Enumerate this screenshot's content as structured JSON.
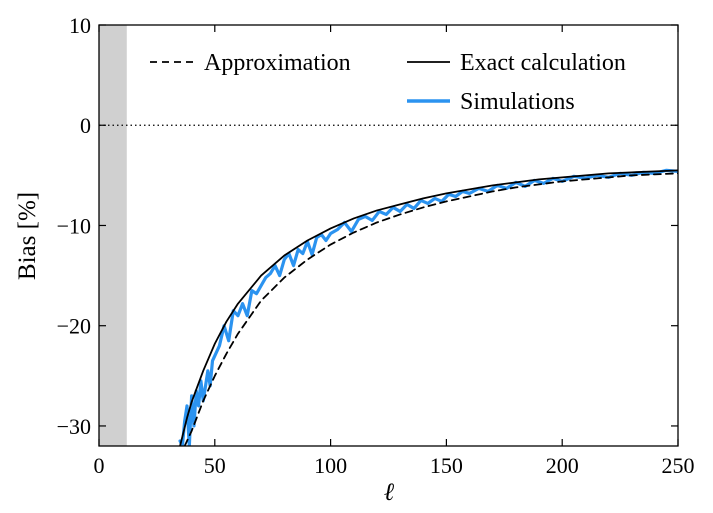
{
  "chart_data": {
    "type": "line",
    "title": "",
    "xlabel": "ℓ",
    "ylabel": "Bias [%]",
    "xlim": [
      0,
      250
    ],
    "ylim": [
      -32,
      10
    ],
    "xticks": [
      0,
      50,
      100,
      150,
      200,
      250
    ],
    "yticks": [
      -30,
      -20,
      -10,
      0,
      10
    ],
    "xtick_labels": [
      "0",
      "50",
      "100",
      "150",
      "200",
      "250"
    ],
    "ytick_labels": [
      "−30",
      "−20",
      "−10",
      "0",
      "10"
    ],
    "shaded_band": {
      "x_from": 0,
      "x_to": 12,
      "color": "#d0d0d0"
    },
    "reference_line": {
      "y": 0,
      "style": "dotted"
    },
    "legend_position": "top",
    "series": [
      {
        "name": "Approximation",
        "style": "dashed",
        "color": "#000000",
        "x": [
          37,
          40,
          45,
          50,
          55,
          60,
          70,
          80,
          90,
          100,
          110,
          120,
          130,
          140,
          150,
          160,
          170,
          180,
          190,
          200,
          210,
          220,
          230,
          240,
          250
        ],
        "y": [
          -32,
          -30.5,
          -27.5,
          -25,
          -22.8,
          -20.8,
          -17.5,
          -15.2,
          -13.4,
          -11.9,
          -10.7,
          -9.7,
          -8.9,
          -8.2,
          -7.6,
          -7.1,
          -6.6,
          -6.2,
          -5.9,
          -5.6,
          -5.4,
          -5.2,
          -5.0,
          -4.9,
          -4.8
        ]
      },
      {
        "name": "Exact calculation",
        "style": "solid",
        "color": "#000000",
        "x": [
          35,
          38,
          40,
          45,
          50,
          55,
          60,
          70,
          80,
          90,
          100,
          110,
          120,
          130,
          140,
          150,
          160,
          170,
          180,
          190,
          200,
          210,
          220,
          230,
          240,
          250
        ],
        "y": [
          -32,
          -29.2,
          -27.6,
          -24.5,
          -21.8,
          -19.6,
          -17.8,
          -15.0,
          -13.0,
          -11.5,
          -10.3,
          -9.3,
          -8.5,
          -7.9,
          -7.3,
          -6.8,
          -6.4,
          -6.0,
          -5.7,
          -5.4,
          -5.2,
          -5.0,
          -4.8,
          -4.7,
          -4.6,
          -4.5
        ]
      },
      {
        "name": "Simulations",
        "style": "solid",
        "color": "#2b93f0",
        "x": [
          35,
          36,
          37,
          38,
          39,
          40,
          41,
          42,
          43,
          44,
          45,
          46,
          47,
          48,
          49,
          50,
          52,
          54,
          56,
          58,
          60,
          62,
          64,
          66,
          68,
          70,
          72,
          74,
          76,
          78,
          80,
          82,
          84,
          86,
          88,
          90,
          92,
          94,
          96,
          98,
          100,
          103,
          106,
          109,
          112,
          115,
          118,
          121,
          124,
          127,
          130,
          133,
          136,
          139,
          142,
          145,
          148,
          151,
          154,
          157,
          160,
          164,
          168,
          172,
          176,
          180,
          184,
          188,
          192,
          196,
          200,
          205,
          210,
          215,
          220,
          225,
          230,
          235,
          240,
          245,
          250
        ],
        "y": [
          -31.5,
          -32,
          -29.5,
          -28,
          -32,
          -27,
          -30,
          -26.5,
          -28,
          -25.5,
          -27.5,
          -26,
          -24.5,
          -26,
          -23.5,
          -23,
          -22,
          -20,
          -21.5,
          -18.5,
          -19,
          -17.8,
          -19,
          -16.5,
          -16.8,
          -16,
          -15.2,
          -14.8,
          -14,
          -15,
          -13.4,
          -12.8,
          -14,
          -12.4,
          -12.8,
          -11.6,
          -12.9,
          -11.2,
          -10.9,
          -11.5,
          -10.8,
          -10.4,
          -9.7,
          -10.6,
          -9.4,
          -9.1,
          -9.5,
          -8.6,
          -8.9,
          -8.2,
          -8.6,
          -7.9,
          -8.3,
          -7.5,
          -7.8,
          -7.3,
          -7.6,
          -6.9,
          -7.1,
          -6.6,
          -6.8,
          -6.3,
          -6.6,
          -6.0,
          -6.3,
          -5.7,
          -6.1,
          -5.5,
          -5.8,
          -5.3,
          -5.6,
          -5.1,
          -5.3,
          -5.0,
          -5.2,
          -4.8,
          -5.0,
          -4.7,
          -4.8,
          -4.5,
          -4.6
        ]
      }
    ]
  }
}
